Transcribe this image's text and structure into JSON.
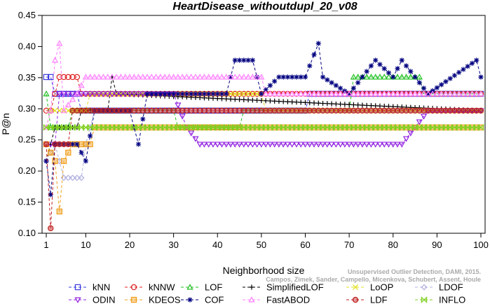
{
  "chart_data": {
    "type": "line",
    "title": "HeartDisease_withoutdupl_20_v08",
    "xlabel": "Neighborhood size",
    "ylabel": "P@n",
    "xlim": [
      1,
      100
    ],
    "ylim": [
      0.1,
      0.45
    ],
    "x_ticks": [
      1,
      10,
      20,
      30,
      40,
      50,
      60,
      70,
      80,
      90,
      100
    ],
    "x_tick_labels": [
      "1",
      "10",
      "20",
      "30",
      "40",
      "50",
      "60",
      "70",
      "80",
      "90",
      "100"
    ],
    "y_ticks": [
      0.1,
      0.15,
      0.2,
      0.25,
      0.3,
      0.35,
      0.4,
      0.45
    ],
    "y_tick_labels": [
      "0.10",
      "0.15",
      "0.20",
      "0.25",
      "0.30",
      "0.35",
      "0.40",
      "0.45"
    ],
    "grid": false,
    "legend_position": "bottom",
    "credit_lines": [
      "Campos, Zimek, Sander, Campello, Micenkova, Schubert, Assent, Houle",
      "Unsupervised Outlier Detection, DAMI, 2015."
    ],
    "series": [
      {
        "name": "kNN",
        "color": "#3a3ae0",
        "marker": "square",
        "knots": [
          [
            1,
            0.351
          ],
          [
            2,
            0.351
          ],
          [
            3,
            0.324
          ],
          [
            8,
            0.324
          ],
          [
            9,
            0.297
          ],
          [
            60,
            0.297
          ],
          [
            61,
            0.324
          ],
          [
            100,
            0.324
          ]
        ]
      },
      {
        "name": "kNNW",
        "color": "#e02020",
        "marker": "circle",
        "knots": [
          [
            1,
            0.297
          ],
          [
            2,
            0.297
          ],
          [
            3,
            0.324
          ],
          [
            4,
            0.351
          ],
          [
            8,
            0.351
          ],
          [
            9,
            0.324
          ],
          [
            100,
            0.324
          ]
        ]
      },
      {
        "name": "LOF",
        "color": "#20c020",
        "marker": "triangle-up",
        "knots": [
          [
            1,
            0.324
          ],
          [
            2,
            0.27
          ],
          [
            6,
            0.27
          ],
          [
            7,
            0.297
          ],
          [
            30,
            0.297
          ],
          [
            31,
            0.27
          ],
          [
            45,
            0.27
          ],
          [
            46,
            0.297
          ],
          [
            70,
            0.297
          ],
          [
            71,
            0.351
          ],
          [
            86,
            0.351
          ],
          [
            87,
            0.324
          ],
          [
            100,
            0.324
          ]
        ]
      },
      {
        "name": "SimplifiedLOF",
        "color": "#000000",
        "marker": "plus",
        "knots": [
          [
            1,
            0.216
          ],
          [
            2,
            0.243
          ],
          [
            3,
            0.27
          ],
          [
            8,
            0.27
          ],
          [
            9,
            0.297
          ],
          [
            15,
            0.297
          ],
          [
            16,
            0.351
          ],
          [
            17,
            0.324
          ],
          [
            100,
            0.297
          ]
        ]
      },
      {
        "name": "LoOP",
        "color": "#e0e020",
        "marker": "x",
        "knots": [
          [
            1,
            0.27
          ],
          [
            2,
            0.297
          ],
          [
            10,
            0.297
          ],
          [
            11,
            0.324
          ],
          [
            50,
            0.324
          ],
          [
            51,
            0.297
          ],
          [
            100,
            0.297
          ]
        ]
      },
      {
        "name": "LDOF",
        "color": "#b0b0e0",
        "marker": "diamond",
        "knots": [
          [
            1,
            0.216
          ],
          [
            3,
            0.243
          ],
          [
            5,
            0.189
          ],
          [
            9,
            0.189
          ],
          [
            10,
            0.243
          ],
          [
            12,
            0.297
          ],
          [
            100,
            0.297
          ]
        ]
      },
      {
        "name": "ODIN",
        "color": "#9020e0",
        "marker": "triangle-down",
        "knots": [
          [
            1,
            0.243
          ],
          [
            3,
            0.243
          ],
          [
            4,
            0.324
          ],
          [
            30,
            0.324
          ],
          [
            33,
            0.27
          ],
          [
            36,
            0.243
          ],
          [
            58,
            0.243
          ],
          [
            62,
            0.243
          ],
          [
            75,
            0.243
          ],
          [
            82,
            0.243
          ],
          [
            85,
            0.27
          ],
          [
            88,
            0.297
          ],
          [
            100,
            0.297
          ]
        ]
      },
      {
        "name": "KDEOS",
        "color": "#f0a020",
        "marker": "square-filled",
        "knots": [
          [
            1,
            0.243
          ],
          [
            3,
            0.216
          ],
          [
            4,
            0.135
          ],
          [
            5,
            0.216
          ],
          [
            7,
            0.243
          ],
          [
            11,
            0.243
          ],
          [
            12,
            0.27
          ],
          [
            100,
            0.27
          ]
        ]
      },
      {
        "name": "COF",
        "color": "#000080",
        "marker": "asterisk",
        "knots": [
          [
            1,
            0.216
          ],
          [
            2,
            0.162
          ],
          [
            3,
            0.243
          ],
          [
            6,
            0.243
          ],
          [
            8,
            0.243
          ],
          [
            10,
            0.216
          ],
          [
            12,
            0.297
          ],
          [
            20,
            0.297
          ],
          [
            22,
            0.243
          ],
          [
            24,
            0.324
          ],
          [
            42,
            0.324
          ],
          [
            44,
            0.378
          ],
          [
            48,
            0.378
          ],
          [
            50,
            0.324
          ],
          [
            54,
            0.351
          ],
          [
            60,
            0.351
          ],
          [
            63,
            0.405
          ],
          [
            64,
            0.351
          ],
          [
            70,
            0.324
          ],
          [
            76,
            0.378
          ],
          [
            80,
            0.351
          ],
          [
            82,
            0.378
          ],
          [
            88,
            0.324
          ],
          [
            99,
            0.378
          ],
          [
            100,
            0.351
          ]
        ]
      },
      {
        "name": "FastABOD",
        "color": "#ff80ff",
        "marker": "triangle-up-open",
        "knots": [
          [
            1,
            0.27
          ],
          [
            2,
            0.297
          ],
          [
            3,
            0.378
          ],
          [
            4,
            0.405
          ],
          [
            5,
            0.297
          ],
          [
            8,
            0.324
          ],
          [
            10,
            0.351
          ],
          [
            50,
            0.351
          ],
          [
            51,
            0.324
          ],
          [
            100,
            0.324
          ]
        ]
      },
      {
        "name": "LDF",
        "color": "#c02020",
        "marker": "circle-filled",
        "knots": [
          [
            1,
            0.243
          ],
          [
            2,
            0.108
          ],
          [
            3,
            0.243
          ],
          [
            6,
            0.243
          ],
          [
            7,
            0.297
          ],
          [
            100,
            0.297
          ]
        ]
      },
      {
        "name": "INFLO",
        "color": "#80d020",
        "marker": "hourglass",
        "knots": [
          [
            1,
            0.27
          ],
          [
            10,
            0.27
          ],
          [
            11,
            0.27
          ],
          [
            30,
            0.27
          ],
          [
            50,
            0.27
          ],
          [
            51,
            0.27
          ],
          [
            70,
            0.27
          ],
          [
            100,
            0.27
          ]
        ]
      }
    ]
  }
}
